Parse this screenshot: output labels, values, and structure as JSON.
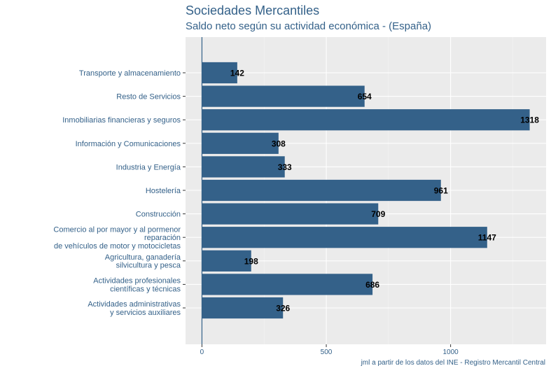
{
  "chart_data": {
    "type": "bar",
    "orientation": "horizontal",
    "title": "Sociedades Mercantiles",
    "subtitle": "Saldo neto según su actividad económica - (España)",
    "caption": "jml a partir de los datos del INE - Registro Mercantil Central",
    "xlabel": "",
    "ylabel": "",
    "xlim": [
      -66,
      1384
    ],
    "xticks": [
      0,
      500,
      1000
    ],
    "grid": true,
    "categories": [
      [
        "Transporte y almacenamiento"
      ],
      [
        "Resto de Servicios"
      ],
      [
        "Inmobiliarias financieras y seguros"
      ],
      [
        "Información y Comunicaciones"
      ],
      [
        "Industria y Energía"
      ],
      [
        "Hostelería"
      ],
      [
        "Construcción"
      ],
      [
        "Comercio al por mayor y al pormenor",
        "reparación",
        "de vehículos de motor y motocicletas"
      ],
      [
        "Agricultura, ganadería",
        "silvicultura y pesca"
      ],
      [
        "Actividades profesionales",
        "científicas y técnicas"
      ],
      [
        "Actividades administrativas",
        "y servicios auxiliares"
      ]
    ],
    "values": [
      142,
      654,
      1318,
      308,
      333,
      961,
      709,
      1147,
      198,
      686,
      326
    ],
    "colors": {
      "bar": "#346189",
      "panel": "#ebebeb",
      "grid_major": "#ffffff",
      "grid_minor": "#f5f5f5",
      "text": "#346189",
      "value_label": "#000000"
    }
  }
}
